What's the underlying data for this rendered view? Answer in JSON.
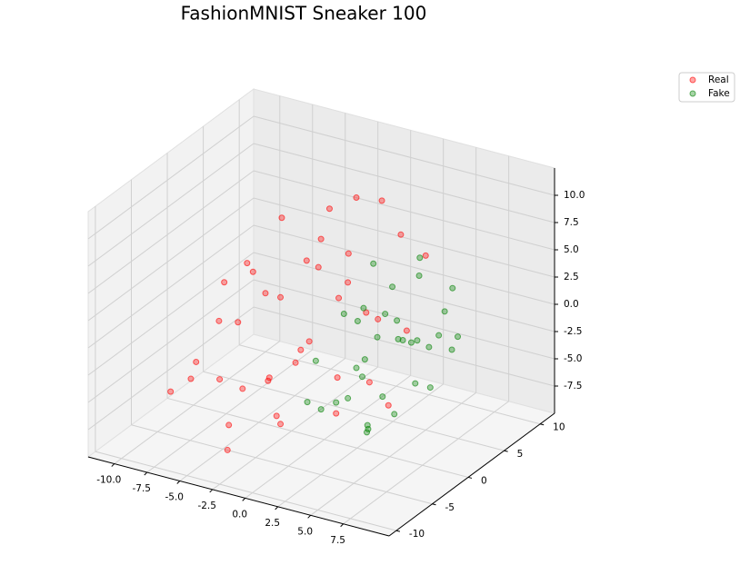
{
  "chart_data": {
    "type": "scatter3d",
    "title": "FashionMNIST Sneaker 100",
    "xlim": [
      -12,
      11
    ],
    "ylim": [
      -11,
      12
    ],
    "zlim": [
      -10,
      12.5
    ],
    "xticks": [
      {
        "value": -10,
        "label": "-10.0"
      },
      -7.5,
      {
        "value": -5,
        "label": "-5.0"
      },
      -2.5,
      {
        "value": 0,
        "label": "0.0"
      },
      2.5,
      {
        "value": 5,
        "label": "5.0"
      },
      7.5
    ],
    "yticks": [
      -10,
      -5,
      0,
      5,
      10
    ],
    "zticks": [
      -7.5,
      {
        "value": -5,
        "label": "-5.0"
      },
      -2.5,
      {
        "value": 0,
        "label": "0.0"
      },
      2.5,
      {
        "value": 5,
        "label": "5.0"
      },
      7.5,
      {
        "value": 10,
        "label": "10.0"
      }
    ],
    "grid": true,
    "legend": "upper right",
    "series": [
      {
        "name": "Real",
        "color": "#ff0000",
        "x": [
          -8,
          -7,
          -6.5,
          -6,
          -5.5,
          -5,
          -4.5,
          -4,
          -3.5,
          -3,
          -2.5,
          -2,
          -1.5,
          -1,
          0,
          0.5,
          1,
          2,
          3,
          4,
          -9,
          -7.5,
          -6,
          -4,
          -2,
          0,
          2,
          -5,
          -3,
          -1,
          1,
          3,
          -6,
          -4,
          -2,
          -8,
          -3,
          0,
          5,
          6
        ],
        "y": [
          -4,
          2,
          -6,
          5,
          -2,
          7,
          0,
          8,
          -5,
          3,
          9,
          -3,
          6,
          1,
          8,
          -7,
          4,
          7,
          6,
          -1,
          -5,
          -1,
          1,
          -6,
          -4,
          2,
          -2,
          3,
          5,
          -6,
          0,
          2,
          -3,
          4,
          7,
          0,
          -8,
          -4,
          5,
          -2
        ],
        "z": [
          -5,
          3,
          -2,
          6,
          0,
          -6,
          2,
          6,
          -4,
          4,
          7,
          -7,
          1,
          5,
          8,
          -5,
          0,
          6,
          -2,
          -3,
          -6,
          -1,
          3,
          -7,
          -3,
          2,
          -6,
          0,
          5,
          -2,
          -4,
          1,
          4,
          -5,
          3,
          -7,
          -8,
          -1,
          6,
          -4
        ]
      },
      {
        "name": "Fake",
        "color": "#008000",
        "x": [
          1,
          1.5,
          2,
          2.5,
          3,
          3.5,
          4,
          4.5,
          5,
          5.5,
          6,
          6.5,
          7,
          7.5,
          8,
          1,
          2,
          3,
          4,
          5,
          6,
          7,
          8,
          2,
          3,
          4,
          5,
          6,
          7,
          3,
          4,
          5,
          6,
          2,
          7
        ],
        "y": [
          -3,
          0,
          2,
          -5,
          4,
          1,
          -2,
          5,
          3,
          -4,
          0,
          6,
          2,
          -1,
          4,
          5,
          -2,
          3,
          -4,
          1,
          5,
          -3,
          0,
          -6,
          -1,
          6,
          -3,
          2,
          4,
          0,
          3,
          -1,
          -5,
          1,
          5
        ],
        "z": [
          -1,
          2,
          -3,
          -4,
          3,
          0,
          -2,
          4,
          -1,
          -5,
          1,
          3,
          -4,
          -2,
          0,
          4,
          -5,
          1,
          -3,
          2,
          -1,
          -4,
          1,
          -3,
          -2,
          5,
          -6,
          0,
          2,
          3,
          -1,
          -4,
          -5,
          1,
          -2
        ]
      }
    ]
  }
}
